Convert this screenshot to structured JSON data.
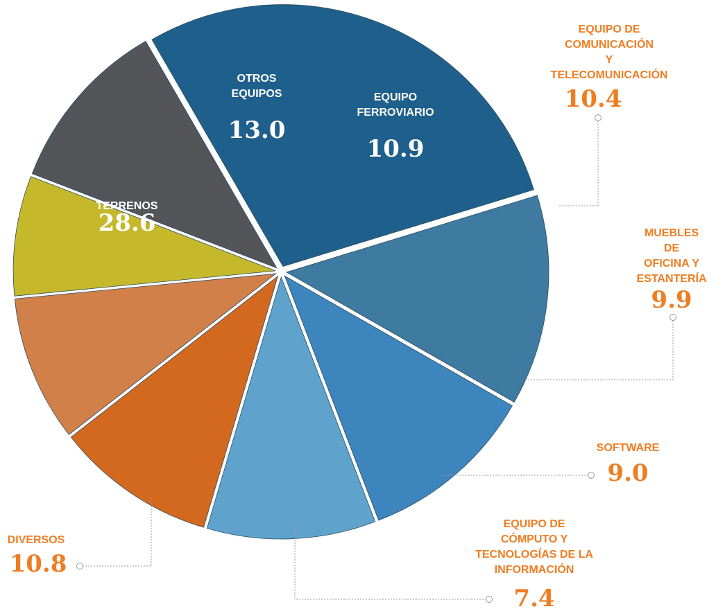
{
  "chart_data": {
    "type": "pie",
    "categories": [
      "TERRENOS",
      "OTROS\nEQUIPOS",
      "EQUIPO\nFERROVIARIO",
      "EQUIPO DE\nCOMUNICACIÓN\nY TELECOMUNICACIÓN",
      "MUEBLES DE\nOFICINA Y\nESTANTERÍA",
      "SOFTWARE",
      "EQUIPO DE\nCÓMPUTO Y\nTECNOLOGÍAS DE LA\nINFORMACIÓN",
      "DIVERSOS"
    ],
    "values": [
      28.6,
      13.0,
      10.9,
      10.4,
      9.9,
      9.0,
      7.4,
      10.8
    ],
    "value_labels": [
      "28.6",
      "13.0",
      "10.9",
      "10.4",
      "9.9",
      "9.0",
      "7.4",
      "10.8"
    ],
    "colors": [
      "#1f5f8b",
      "#3f7aa0",
      "#3d85bd",
      "#5fa3cc",
      "#d2691e",
      "#d08048",
      "#c5b82a",
      "#545559"
    ]
  }
}
